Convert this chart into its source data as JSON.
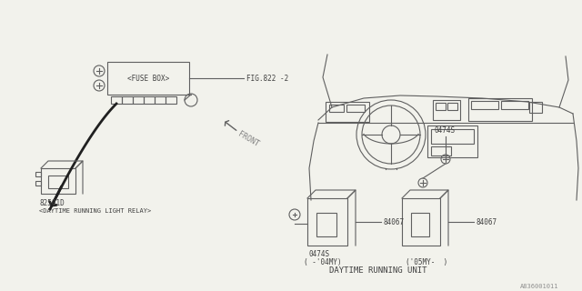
{
  "bg_color": "#f2f2ec",
  "line_color": "#606060",
  "text_color": "#404040",
  "title": "DAYTIME RUNNING UNIT",
  "part_number_relay": "82501D",
  "relay_label": "<DAYTIME RUNNING LIGHT RELAY>",
  "fuse_label": "<FUSE BOX>",
  "fig_ref": "FIG.822 -2",
  "part_0474S": "0474S",
  "part_84067": "84067",
  "label_04MY": "( -'04MY)",
  "label_05MY": "('05MY-  )",
  "watermark": "A836001011",
  "front_label": "FRONT"
}
